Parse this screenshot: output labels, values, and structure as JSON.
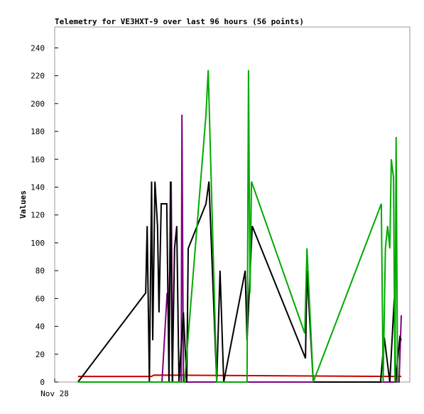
{
  "chart_data": {
    "type": "line",
    "title": "Telemetry for VE3HXT-9 over last 96 hours (56 points)",
    "y_label": "Values",
    "xlim": [
      0,
      96
    ],
    "xticks": [
      {
        "value": 0,
        "label": "Nov 28"
      }
    ],
    "ylim": [
      0,
      255
    ],
    "yticks": [
      0,
      20,
      40,
      60,
      80,
      100,
      120,
      140,
      160,
      180,
      200,
      220,
      240
    ],
    "series": [
      {
        "color": "#cc0000",
        "x": [
          6.3,
          26.2,
          26.8,
          93.7
        ],
        "values": [
          4,
          4,
          5,
          4
        ]
      },
      {
        "color": "#800080",
        "x": [
          6.3,
          29,
          30.4,
          30.9,
          31.5,
          31.9,
          34.2,
          34.4,
          34.8,
          93.1,
          93.7
        ],
        "values": [
          0,
          0,
          64,
          50,
          144,
          0,
          0,
          192,
          0,
          0,
          48
        ]
      },
      {
        "color": "#000000",
        "x": [
          6.3,
          24.6,
          25,
          25.6,
          26.2,
          26.5,
          27.1,
          27.8,
          28.2,
          28.8,
          30.3,
          30.9,
          31.3,
          31.8,
          32.4,
          33,
          33.6,
          34.8,
          35.7,
          36.1,
          40.9,
          41.7,
          43.8,
          44.7,
          45.7,
          51.5,
          52,
          53.4,
          67.8,
          68.2,
          69.9,
          88.1,
          89.1,
          90.6,
          91.8,
          92.2,
          93.3,
          93.7
        ],
        "values": [
          0,
          64,
          112,
          0,
          144,
          30,
          144,
          112,
          50,
          128,
          128,
          0,
          144,
          0,
          96,
          112,
          0,
          50,
          0,
          96,
          128,
          144,
          0,
          80,
          0,
          80,
          30,
          112,
          17,
          80,
          0,
          0,
          32,
          0,
          60,
          0,
          32,
          30
        ]
      },
      {
        "color": "#00aa00",
        "x": [
          6.3,
          35.1,
          40.9,
          41.5,
          43.8,
          52,
          52.4,
          52.8,
          53.2,
          67.6,
          68.2,
          69.9,
          88.3,
          88.8,
          89.4,
          90,
          90.6,
          91,
          91.6,
          92,
          92.3,
          92.7,
          93
        ],
        "values": [
          0,
          0,
          192,
          224,
          0,
          0,
          224,
          64,
          144,
          35,
          96,
          0,
          128,
          0,
          96,
          112,
          96,
          160,
          147,
          0,
          176,
          0,
          0
        ]
      }
    ]
  }
}
